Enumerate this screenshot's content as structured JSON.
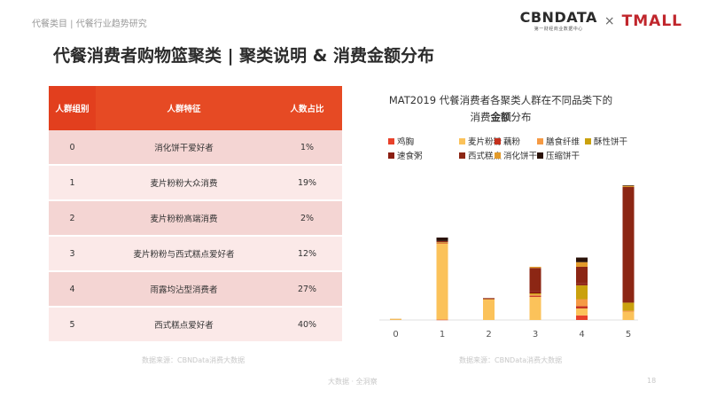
{
  "breadcrumb": "代餐类目 | 代餐行业趋势研究",
  "logos": {
    "cbndata": "CBNDATA",
    "cbndata_sub": "第一财经商业数据中心",
    "separator": "×",
    "tmall": "TMALL"
  },
  "page_title": "代餐消费者购物篮聚类 | 聚类说明 & 消费金额分布",
  "table": {
    "headers": [
      "人群组别",
      "人群特征",
      "人数占比"
    ],
    "rows": [
      {
        "group": "0",
        "feature": "消化饼干爱好者",
        "share": "1%"
      },
      {
        "group": "1",
        "feature": "麦片粉粉大众消费",
        "share": "19%"
      },
      {
        "group": "2",
        "feature": "麦片粉粉高端消费",
        "share": "2%"
      },
      {
        "group": "3",
        "feature": "麦片粉粉与西式糕点爱好者",
        "share": "12%"
      },
      {
        "group": "4",
        "feature": "雨露均沾型消费者",
        "share": "27%"
      },
      {
        "group": "5",
        "feature": "西式糕点爱好者",
        "share": "40%"
      }
    ]
  },
  "chart_data": {
    "type": "bar",
    "stacked": true,
    "title_line1": "MAT2019 代餐消费者各聚类人群在不同品类下的",
    "title_line2_pre": "消费",
    "title_line2_bold": "金额",
    "title_line2_post": "分布",
    "categories": [
      "0",
      "1",
      "2",
      "3",
      "4",
      "5"
    ],
    "grid": false,
    "y_axis_shown": false,
    "legend_position": "top",
    "series": [
      {
        "name": "鸡胸",
        "color": "#e8412a",
        "values": [
          0,
          0.3,
          0,
          0,
          4,
          0
        ]
      },
      {
        "name": "麦片粉粉",
        "color": "#fbc25a",
        "values": [
          0.5,
          66,
          18,
          20,
          6,
          7
        ]
      },
      {
        "name": "藕粉",
        "color": "#c4301d",
        "values": [
          0,
          0.5,
          0,
          1,
          2,
          0
        ]
      },
      {
        "name": "膳食纤维",
        "color": "#f59a44",
        "values": [
          0,
          0,
          0,
          1,
          6,
          1
        ]
      },
      {
        "name": "酥性饼干",
        "color": "#caa10d",
        "values": [
          0,
          0.5,
          0,
          1,
          12,
          7
        ]
      },
      {
        "name": "速食粥",
        "color": "#8b1e12",
        "values": [
          0,
          0.5,
          0.5,
          2,
          2,
          0
        ]
      },
      {
        "name": "西式糕点",
        "color": "#8c2614",
        "values": [
          0,
          0.5,
          0.5,
          20,
          14,
          100
        ]
      },
      {
        "name": "消化饼干",
        "color": "#e29a2a",
        "values": [
          0.5,
          0,
          0,
          1,
          4,
          1
        ]
      },
      {
        "name": "压缩饼干",
        "color": "#2a1209",
        "values": [
          0,
          3,
          0,
          0,
          4,
          0.5
        ]
      }
    ]
  },
  "sources": {
    "left": "数据来源：CBNData消费大数据",
    "right": "数据来源：CBNData消费大数据"
  },
  "footer": "大数据 · 全洞察",
  "page_number": "18"
}
